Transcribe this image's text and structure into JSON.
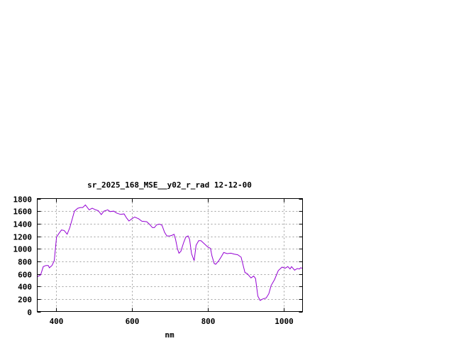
{
  "chart_data": {
    "type": "line",
    "title": "sr_2025_168_MSE__y02_r_rad 12-12-00",
    "xlabel": "nm",
    "ylabel": "",
    "xlim": [
      350,
      1050
    ],
    "ylim": [
      0,
      1800
    ],
    "xticks": [
      400,
      600,
      800,
      1000
    ],
    "yticks": [
      0,
      200,
      400,
      600,
      800,
      1000,
      1200,
      1400,
      1600,
      1800
    ],
    "grid": true,
    "line_color": "#9400d3",
    "x": [
      350,
      359,
      366,
      373,
      379,
      382,
      389,
      395,
      401,
      407,
      414,
      421,
      429,
      436,
      442,
      448,
      457,
      464,
      470,
      477,
      487,
      495,
      504,
      511,
      519,
      526,
      536,
      542,
      552,
      559,
      570,
      579,
      586,
      592,
      600,
      607,
      617,
      626,
      639,
      646,
      654,
      659,
      665,
      673,
      679,
      686,
      692,
      700,
      706,
      711,
      715,
      720,
      724,
      729,
      736,
      742,
      748,
      752,
      757,
      764,
      769,
      776,
      782,
      792,
      800,
      807,
      811,
      817,
      821,
      829,
      836,
      842,
      851,
      861,
      870,
      879,
      888,
      898,
      904,
      914,
      921,
      926,
      932,
      938,
      945,
      954,
      961,
      967,
      976,
      986,
      996,
      1004,
      1011,
      1017,
      1021,
      1029,
      1036,
      1042,
      1045,
      1050
    ],
    "y": [
      553,
      584,
      715,
      734,
      734,
      697,
      734,
      810,
      1186,
      1243,
      1300,
      1292,
      1232,
      1337,
      1469,
      1600,
      1646,
      1657,
      1657,
      1698,
      1620,
      1646,
      1620,
      1608,
      1544,
      1600,
      1620,
      1593,
      1600,
      1570,
      1548,
      1555,
      1488,
      1442,
      1480,
      1506,
      1480,
      1439,
      1431,
      1393,
      1337,
      1337,
      1382,
      1393,
      1375,
      1262,
      1205,
      1205,
      1216,
      1231,
      1149,
      998,
      930,
      960,
      1092,
      1186,
      1205,
      1149,
      923,
      810,
      1055,
      1130,
      1130,
      1073,
      1028,
      1006,
      885,
      764,
      753,
      810,
      877,
      941,
      923,
      930,
      915,
      904,
      866,
      621,
      603,
      535,
      565,
      527,
      245,
      177,
      200,
      215,
      282,
      414,
      508,
      652,
      708,
      689,
      716,
      678,
      716,
      659,
      685,
      678,
      697,
      689
    ]
  }
}
